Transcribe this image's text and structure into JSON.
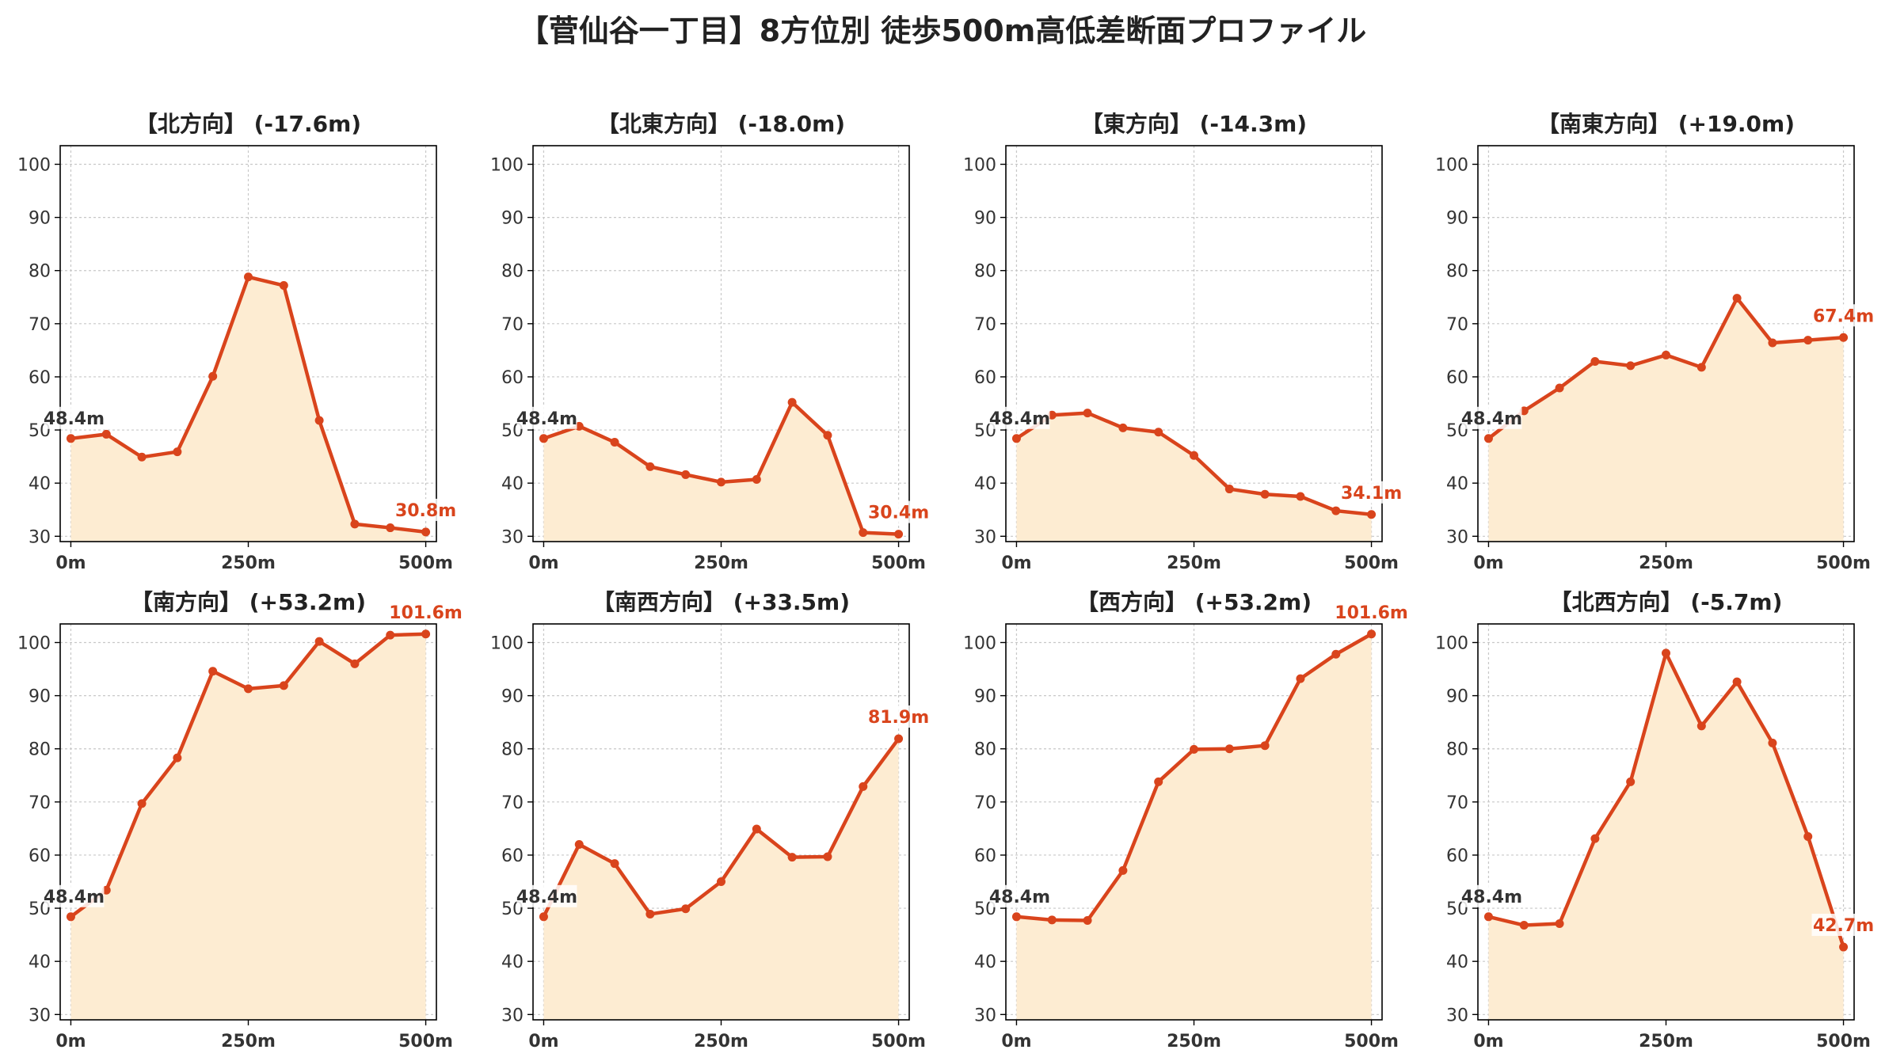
{
  "title": "【菅仙谷一丁目】8方位別 徒歩500m高低差断面プロファイル",
  "colors": {
    "line": "#d9441c",
    "fill": "#fdecd2",
    "grid": "#c8c8c8",
    "axis": "#000000",
    "label_bg": "#ffffff"
  },
  "chart_data": [
    {
      "type": "area",
      "title": "【北方向】 (-17.6m)",
      "xticks": [
        "0m",
        "250m",
        "500m"
      ],
      "x": [
        0,
        50,
        100,
        150,
        200,
        250,
        300,
        350,
        400,
        450,
        500
      ],
      "values": [
        48.4,
        49.2,
        44.9,
        45.9,
        60.1,
        78.8,
        77.2,
        51.8,
        32.3,
        31.6,
        30.8
      ],
      "start_label": "48.4m",
      "end_label": "30.8m",
      "yticks": [
        30,
        40,
        50,
        60,
        70,
        80,
        90,
        100
      ],
      "ylim": [
        29,
        103.5
      ],
      "xlim": [
        -15,
        515
      ],
      "grid": true
    },
    {
      "type": "area",
      "title": "【北東方向】 (-18.0m)",
      "xticks": [
        "0m",
        "250m",
        "500m"
      ],
      "x": [
        0,
        50,
        100,
        150,
        200,
        250,
        300,
        350,
        400,
        450,
        500
      ],
      "values": [
        48.4,
        50.7,
        47.7,
        43.1,
        41.6,
        40.2,
        40.7,
        55.2,
        49.0,
        30.7,
        30.4
      ],
      "start_label": "48.4m",
      "end_label": "30.4m",
      "yticks": [
        30,
        40,
        50,
        60,
        70,
        80,
        90,
        100
      ],
      "ylim": [
        29,
        103.5
      ],
      "xlim": [
        -15,
        515
      ],
      "grid": true
    },
    {
      "type": "area",
      "title": "【東方向】 (-14.3m)",
      "xticks": [
        "0m",
        "250m",
        "500m"
      ],
      "x": [
        0,
        50,
        100,
        150,
        200,
        250,
        300,
        350,
        400,
        450,
        500
      ],
      "values": [
        48.4,
        52.8,
        53.2,
        50.4,
        49.6,
        45.2,
        38.9,
        37.9,
        37.5,
        34.8,
        34.1
      ],
      "start_label": "48.4m",
      "end_label": "34.1m",
      "yticks": [
        30,
        40,
        50,
        60,
        70,
        80,
        90,
        100
      ],
      "ylim": [
        29,
        103.5
      ],
      "xlim": [
        -15,
        515
      ],
      "grid": true
    },
    {
      "type": "area",
      "title": "【南東方向】 (+19.0m)",
      "xticks": [
        "0m",
        "250m",
        "500m"
      ],
      "x": [
        0,
        50,
        100,
        150,
        200,
        250,
        300,
        350,
        400,
        450,
        500
      ],
      "values": [
        48.4,
        53.6,
        57.9,
        62.9,
        62.1,
        64.1,
        61.8,
        74.8,
        66.4,
        66.9,
        67.4
      ],
      "start_label": "48.4m",
      "end_label": "67.4m",
      "yticks": [
        30,
        40,
        50,
        60,
        70,
        80,
        90,
        100
      ],
      "ylim": [
        29,
        103.5
      ],
      "xlim": [
        -15,
        515
      ],
      "grid": true
    },
    {
      "type": "area",
      "title": "【南方向】 (+53.2m)",
      "xticks": [
        "0m",
        "250m",
        "500m"
      ],
      "x": [
        0,
        50,
        100,
        150,
        200,
        250,
        300,
        350,
        400,
        450,
        500
      ],
      "values": [
        48.4,
        53.4,
        69.7,
        78.3,
        94.6,
        91.3,
        91.9,
        100.2,
        96.0,
        101.4,
        101.6
      ],
      "start_label": "48.4m",
      "end_label": "101.6m",
      "yticks": [
        30,
        40,
        50,
        60,
        70,
        80,
        90,
        100
      ],
      "ylim": [
        29,
        103.5
      ],
      "xlim": [
        -15,
        515
      ],
      "grid": true
    },
    {
      "type": "area",
      "title": "【南西方向】 (+33.5m)",
      "xticks": [
        "0m",
        "250m",
        "500m"
      ],
      "x": [
        0,
        50,
        100,
        150,
        200,
        250,
        300,
        350,
        400,
        450,
        500
      ],
      "values": [
        48.4,
        62.0,
        58.4,
        48.9,
        49.9,
        55.0,
        64.9,
        59.6,
        59.7,
        72.9,
        81.9
      ],
      "start_label": "48.4m",
      "end_label": "81.9m",
      "yticks": [
        30,
        40,
        50,
        60,
        70,
        80,
        90,
        100
      ],
      "ylim": [
        29,
        103.5
      ],
      "xlim": [
        -15,
        515
      ],
      "grid": true
    },
    {
      "type": "area",
      "title": "【西方向】 (+53.2m)",
      "xticks": [
        "0m",
        "250m",
        "500m"
      ],
      "x": [
        0,
        50,
        100,
        150,
        200,
        250,
        300,
        350,
        400,
        450,
        500
      ],
      "values": [
        48.4,
        47.8,
        47.7,
        57.1,
        73.8,
        79.9,
        80.0,
        80.6,
        93.2,
        97.8,
        101.6
      ],
      "start_label": "48.4m",
      "end_label": "101.6m",
      "yticks": [
        30,
        40,
        50,
        60,
        70,
        80,
        90,
        100
      ],
      "ylim": [
        29,
        103.5
      ],
      "xlim": [
        -15,
        515
      ],
      "grid": true
    },
    {
      "type": "area",
      "title": "【北西方向】 (-5.7m)",
      "xticks": [
        "0m",
        "250m",
        "500m"
      ],
      "x": [
        0,
        50,
        100,
        150,
        200,
        250,
        300,
        350,
        400,
        450,
        500
      ],
      "values": [
        48.4,
        46.8,
        47.1,
        63.1,
        73.8,
        98.0,
        84.3,
        92.6,
        81.1,
        63.5,
        42.7
      ],
      "start_label": "48.4m",
      "end_label": "42.7m",
      "yticks": [
        30,
        40,
        50,
        60,
        70,
        80,
        90,
        100
      ],
      "ylim": [
        29,
        103.5
      ],
      "xlim": [
        -15,
        515
      ],
      "grid": true
    }
  ]
}
